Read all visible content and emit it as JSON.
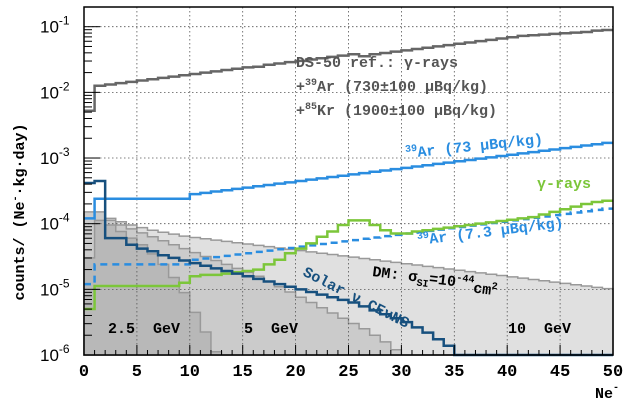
{
  "chart_data": {
    "type": "histogram-line",
    "title": "",
    "xlabel": "Ne",
    "xlabel_superscript": "-",
    "ylabel": "counts/ (Ne",
    "ylabel_superscript": "-",
    "ylabel_suffix": "·kg·day)",
    "xlim": [
      0,
      50
    ],
    "ylim_log10": [
      -6,
      -0.7
    ],
    "yscale": "log",
    "grid": true,
    "x_ticks": [
      "0",
      "5",
      "10",
      "15",
      "20",
      "25",
      "30",
      "35",
      "40",
      "45",
      "50"
    ],
    "y_ticks": [
      {
        "base": "10",
        "exp": "-1",
        "log": -1
      },
      {
        "base": "10",
        "exp": "-2",
        "log": -2
      },
      {
        "base": "10",
        "exp": "-3",
        "log": -3
      },
      {
        "base": "10",
        "exp": "-4",
        "log": -4
      },
      {
        "base": "10",
        "exp": "-5",
        "log": -5
      },
      {
        "base": "10",
        "exp": "-6",
        "log": -6
      }
    ],
    "colors": {
      "ds50": "#666666",
      "ar39_73": "#2a8de0",
      "ar39_7_3": "#2a8de0",
      "gamma": "#7cc63a",
      "solar": "#17507e",
      "dm_edge": "#999999",
      "dm_10": "#e0e0e0",
      "dm_5": "#cbcbcb",
      "dm_2_5": "#b8b8b8"
    },
    "series": [
      {
        "name": "DS-50 ref.",
        "style": "step",
        "log_values": [
          -2.28,
          -1.9,
          -1.88,
          -1.86,
          -1.84,
          -1.82,
          -1.8,
          -1.78,
          -1.76,
          -1.74,
          -1.72,
          -1.7,
          -1.68,
          -1.66,
          -1.64,
          -1.62,
          -1.61,
          -1.58,
          -1.56,
          -1.54,
          -1.52,
          -1.5,
          -1.48,
          -1.46,
          -1.44,
          -1.42,
          -1.45,
          -1.42,
          -1.4,
          -1.38,
          -1.36,
          -1.34,
          -1.32,
          -1.3,
          -1.28,
          -1.26,
          -1.24,
          -1.22,
          -1.2,
          -1.18,
          -1.16,
          -1.14,
          -1.13,
          -1.12,
          -1.11,
          -1.1,
          -1.09,
          -1.08,
          -1.06,
          -1.05
        ]
      },
      {
        "name": "39Ar (73 μBq/kg)",
        "style": "step",
        "log_values": [
          -3.92,
          -3.62,
          -3.62,
          -3.62,
          -3.62,
          -3.62,
          -3.62,
          -3.62,
          -3.62,
          -3.62,
          -3.55,
          -3.53,
          -3.51,
          -3.49,
          -3.47,
          -3.45,
          -3.43,
          -3.41,
          -3.39,
          -3.37,
          -3.35,
          -3.33,
          -3.31,
          -3.29,
          -3.27,
          -3.25,
          -3.23,
          -3.21,
          -3.19,
          -3.17,
          -3.15,
          -3.13,
          -3.11,
          -3.09,
          -3.07,
          -3.05,
          -3.03,
          -3.01,
          -2.99,
          -2.97,
          -2.95,
          -2.93,
          -2.91,
          -2.89,
          -2.87,
          -2.85,
          -2.83,
          -2.81,
          -2.79,
          -2.77
        ]
      },
      {
        "name": "39Ar (7.3 μBq/kg)",
        "style": "dashed-step",
        "log_values": [
          -4.92,
          -4.62,
          -4.62,
          -4.62,
          -4.62,
          -4.62,
          -4.62,
          -4.62,
          -4.62,
          -4.62,
          -4.55,
          -4.53,
          -4.51,
          -4.49,
          -4.47,
          -4.45,
          -4.43,
          -4.41,
          -4.39,
          -4.37,
          -4.35,
          -4.33,
          -4.31,
          -4.29,
          -4.27,
          -4.25,
          -4.23,
          -4.21,
          -4.19,
          -4.17,
          -4.15,
          -4.13,
          -4.11,
          -4.09,
          -4.07,
          -4.05,
          -4.03,
          -4.01,
          -3.99,
          -3.97,
          -3.95,
          -3.93,
          -3.91,
          -3.89,
          -3.87,
          -3.85,
          -3.83,
          -3.81,
          -3.79,
          -3.77
        ]
      },
      {
        "name": "γ-rays",
        "style": "step",
        "log_values": [
          -5.3,
          -4.95,
          -4.95,
          -4.95,
          -4.95,
          -4.95,
          -4.95,
          -4.95,
          -4.95,
          -4.9,
          -4.8,
          -4.78,
          -4.78,
          -4.76,
          -4.74,
          -4.72,
          -4.7,
          -4.62,
          -4.55,
          -4.45,
          -4.38,
          -4.3,
          -4.2,
          -4.12,
          -4.02,
          -3.95,
          -3.95,
          -4.02,
          -4.1,
          -4.15,
          -4.15,
          -4.12,
          -4.1,
          -4.08,
          -4.06,
          -4.04,
          -4.02,
          -4.0,
          -3.98,
          -3.96,
          -3.94,
          -3.92,
          -3.9,
          -3.86,
          -3.82,
          -3.78,
          -3.74,
          -3.7,
          -3.67,
          -3.65
        ]
      },
      {
        "name": "Solar ν CEvNS",
        "style": "step",
        "log_values": [
          -3.38,
          -3.35,
          -4.22,
          -4.22,
          -4.32,
          -4.38,
          -4.42,
          -4.48,
          -4.52,
          -4.56,
          -4.6,
          -4.64,
          -4.68,
          -4.72,
          -4.76,
          -4.8,
          -4.84,
          -4.88,
          -4.92,
          -4.96,
          -5.0,
          -5.04,
          -5.08,
          -5.12,
          -5.16,
          -5.2,
          -5.26,
          -5.32,
          -5.38,
          -5.44,
          -5.5,
          -5.58,
          -5.66,
          -5.76,
          -5.86,
          -6.0,
          -6.0,
          -6.0,
          -6.0,
          -6.0,
          -6.0,
          -6.0,
          -6.0,
          -6.0,
          -6.0,
          -6.0,
          -6.0,
          -6.0,
          -6.0,
          -6.0
        ]
      },
      {
        "name": "DM 10 GeV",
        "style": "filled-step",
        "log_values": [
          -3.85,
          -3.85,
          -3.92,
          -3.97,
          -4.02,
          -4.06,
          -4.1,
          -4.13,
          -4.16,
          -4.19,
          -4.21,
          -4.23,
          -4.25,
          -4.27,
          -4.29,
          -4.31,
          -4.33,
          -4.35,
          -4.37,
          -4.39,
          -4.41,
          -4.43,
          -4.45,
          -4.47,
          -4.49,
          -4.51,
          -4.53,
          -4.55,
          -4.57,
          -4.59,
          -4.61,
          -4.63,
          -4.65,
          -4.67,
          -4.69,
          -4.71,
          -4.73,
          -4.75,
          -4.77,
          -4.79,
          -4.81,
          -4.83,
          -4.85,
          -4.87,
          -4.89,
          -4.91,
          -4.93,
          -4.95,
          -4.97,
          -4.99
        ]
      },
      {
        "name": "DM 5 GeV",
        "style": "filled-step",
        "log_values": [
          -3.82,
          -3.82,
          -3.95,
          -4.02,
          -4.08,
          -4.14,
          -4.2,
          -4.26,
          -4.32,
          -4.38,
          -4.44,
          -4.5,
          -4.56,
          -4.62,
          -4.68,
          -4.74,
          -4.8,
          -4.88,
          -4.96,
          -5.04,
          -5.12,
          -5.2,
          -5.28,
          -5.36,
          -5.44,
          -5.52,
          -5.6,
          -5.7,
          -5.8,
          -5.92,
          -6.0,
          -6.0,
          -6.0,
          -6.0,
          -6.0,
          -6.0,
          -6.0,
          -6.0,
          -6.0,
          -6.0,
          -6.0,
          -6.0,
          -6.0,
          -6.0,
          -6.0,
          -6.0,
          -6.0,
          -6.0,
          -6.0,
          -6.0
        ]
      },
      {
        "name": "DM 2.5 GeV",
        "style": "filled-step",
        "log_values": [
          -4.52,
          -3.95,
          -4.02,
          -4.12,
          -4.22,
          -4.32,
          -4.46,
          -4.62,
          -4.82,
          -5.05,
          -5.35,
          -5.65,
          -5.95,
          -6.0,
          -6.0,
          -6.0,
          -6.0,
          -6.0,
          -6.0,
          -6.0,
          -6.0,
          -6.0,
          -6.0,
          -6.0,
          -6.0,
          -6.0,
          -6.0,
          -6.0,
          -6.0,
          -6.0,
          -6.0,
          -6.0,
          -6.0,
          -6.0,
          -6.0,
          -6.0,
          -6.0,
          -6.0,
          -6.0,
          -6.0,
          -6.0,
          -6.0,
          -6.0,
          -6.0,
          -6.0,
          -6.0,
          -6.0,
          -6.0,
          -6.0,
          -6.0
        ]
      }
    ],
    "annotations": {
      "ds50_line1": "DS-50 ref.: γ-rays",
      "ds50_line2_pre": "+",
      "ds50_line2_sup": "39",
      "ds50_line2_post": "Ar  (730±100 μBq/kg)",
      "ds50_line3_pre": "+",
      "ds50_line3_sup": "85",
      "ds50_line3_post": "Kr  (1900±100 μBq/kg)",
      "ar73_sup": "39",
      "ar73_text": "Ar (73 μBq/kg)",
      "ar7_sup": "39",
      "ar7_text": "Ar (7.3 μBq/kg)",
      "gamma": "γ-rays",
      "solar": "Solar ν CEνNS",
      "dm_prefix": "DM: σ",
      "dm_sub": "SI",
      "dm_eq": "=10",
      "dm_exp": "-44",
      "dm_unit": "cm",
      "dm_unit_exp": "2",
      "mass_2_5": "2.5  GeV",
      "mass_5": "5  GeV",
      "mass_10": "10  GeV"
    }
  }
}
